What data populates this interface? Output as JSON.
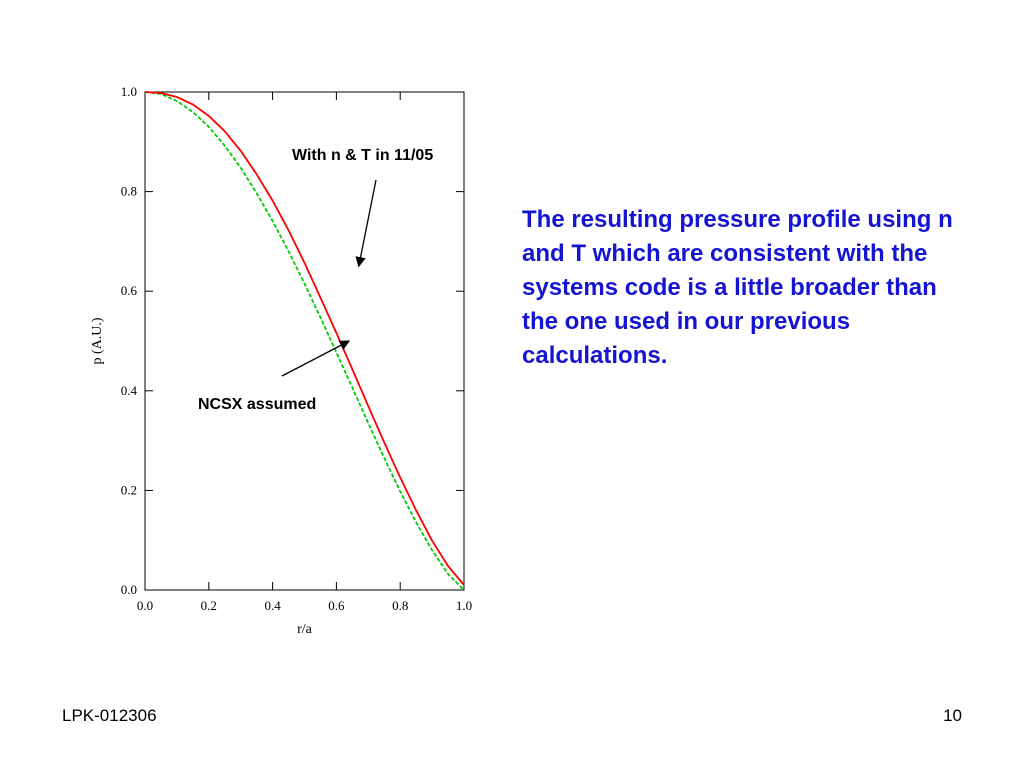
{
  "chart_data": {
    "type": "line",
    "xlabel": "r/a",
    "ylabel": "p (A.U.)",
    "xlim": [
      0.0,
      1.0
    ],
    "ylim": [
      0.0,
      1.0
    ],
    "x_ticks": [
      "0.0",
      "0.2",
      "0.4",
      "0.6",
      "0.8",
      "1.0"
    ],
    "y_ticks": [
      "0.0",
      "0.2",
      "0.4",
      "0.6",
      "0.8",
      "1.0"
    ],
    "grid": false,
    "series": [
      {
        "color": "#ff0000",
        "style": "solid",
        "x": [
          0,
          0.05,
          0.1,
          0.15,
          0.2,
          0.25,
          0.3,
          0.35,
          0.4,
          0.45,
          0.5,
          0.55,
          0.6,
          0.65,
          0.7,
          0.75,
          0.8,
          0.85,
          0.9,
          0.95,
          1.0
        ],
        "y": [
          1.0,
          0.998,
          0.99,
          0.975,
          0.952,
          0.921,
          0.882,
          0.835,
          0.782,
          0.722,
          0.657,
          0.587,
          0.516,
          0.443,
          0.369,
          0.296,
          0.226,
          0.16,
          0.099,
          0.048,
          0.01
        ]
      },
      {
        "color": "#00cc00",
        "style": "dashed",
        "x": [
          0,
          0.05,
          0.1,
          0.15,
          0.2,
          0.25,
          0.3,
          0.35,
          0.4,
          0.45,
          0.5,
          0.55,
          0.6,
          0.65,
          0.7,
          0.75,
          0.8,
          0.85,
          0.9,
          0.95,
          1.0
        ],
        "y": [
          1.0,
          0.996,
          0.982,
          0.96,
          0.93,
          0.892,
          0.848,
          0.797,
          0.741,
          0.68,
          0.615,
          0.547,
          0.477,
          0.406,
          0.335,
          0.265,
          0.198,
          0.136,
          0.08,
          0.032,
          0.0
        ]
      }
    ],
    "annotations": [
      {
        "text": "With n & T in 11/05",
        "target_series": 0,
        "target": [
          0.67,
          0.65
        ]
      },
      {
        "text": "NCSX assumed",
        "target_series": 1,
        "target": [
          0.64,
          0.5
        ]
      }
    ]
  },
  "description": "The resulting pressure profile using n and T which are consistent with the systems code is a little broader than the one used in our previous calculations.",
  "footer": {
    "left": "LPK-012306",
    "right": "10"
  }
}
